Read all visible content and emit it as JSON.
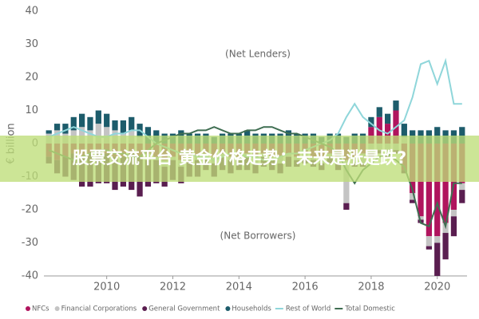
{
  "chart_data": {
    "type": "bar",
    "y_label": "€ billion",
    "annotations": [
      "(Net Lenders)",
      "(Net Borrowers)"
    ],
    "banner": "股票交流平台 黄金价格走势：未来是涨是跌?",
    "x": [
      2008.25,
      2008.5,
      2008.75,
      2009,
      2009.25,
      2009.5,
      2009.75,
      2010,
      2010.25,
      2010.5,
      2010.75,
      2011,
      2011.25,
      2011.5,
      2011.75,
      2012,
      2012.25,
      2012.5,
      2012.75,
      2013,
      2013.25,
      2013.5,
      2013.75,
      2014,
      2014.25,
      2014.5,
      2014.75,
      2015,
      2015.25,
      2015.5,
      2015.75,
      2016,
      2016.25,
      2016.5,
      2016.75,
      2017,
      2017.25,
      2017.5,
      2017.75,
      2018,
      2018.25,
      2018.5,
      2018.75,
      2019,
      2019.25,
      2019.5,
      2019.75,
      2020,
      2020.25,
      2020.5,
      2020.75
    ],
    "xlim": [
      2008.1,
      2020.9
    ],
    "xticks": [
      2010,
      2012,
      2014,
      2016,
      2018,
      2020
    ],
    "ylim": [
      -40,
      40
    ],
    "yticks": [
      -40,
      -30,
      -20,
      -10,
      0,
      10,
      20,
      30,
      40
    ],
    "series": [
      {
        "name": "NFCs",
        "type": "bar",
        "color": "#b0145e",
        "values": [
          -4,
          -5,
          -4,
          -3,
          -4,
          -3,
          -2,
          -3,
          -4,
          -4,
          -3,
          -4,
          -3,
          -4,
          -5,
          -4,
          -5,
          -4,
          -4,
          -3,
          -4,
          -3,
          -4,
          -4,
          -3,
          -4,
          -3,
          -4,
          -4,
          -3,
          -4,
          -3,
          -4,
          -4,
          -3,
          -4,
          -5,
          -4,
          -3,
          5,
          8,
          6,
          10,
          -8,
          -15,
          -22,
          -28,
          -28,
          -24,
          -20,
          -12
        ]
      },
      {
        "name": "Financial Corporations",
        "type": "bar",
        "color": "#c4c4c4",
        "values": [
          3,
          4,
          3,
          4,
          5,
          4,
          6,
          5,
          4,
          3,
          4,
          2,
          -2,
          -1,
          -2,
          -1,
          -2,
          -1,
          -1,
          -1,
          -2,
          -1,
          -1,
          -1,
          -1,
          -2,
          -1,
          -1,
          -2,
          -1,
          -1,
          -1,
          -1,
          -2,
          -1,
          -2,
          -13,
          -2,
          -3,
          -3,
          -2,
          -3,
          -2,
          2,
          -2,
          -1,
          -3,
          -2,
          -3,
          -2,
          -2
        ]
      },
      {
        "name": "General Government",
        "type": "bar",
        "color": "#5a1e50",
        "values": [
          -2,
          -4,
          -6,
          -8,
          -9,
          -10,
          -10,
          -9,
          -10,
          -9,
          -11,
          -12,
          -8,
          -7,
          -6,
          -6,
          -5,
          -5,
          -5,
          -4,
          -4,
          -4,
          -4,
          -3,
          -4,
          -3,
          -3,
          -3,
          -3,
          -3,
          -2,
          -2,
          -2,
          -2,
          -2,
          -2,
          -2,
          -1,
          -1,
          -1,
          -1,
          -1,
          -1,
          -1,
          -1,
          -1,
          -1,
          -10,
          -8,
          -6,
          -4
        ]
      },
      {
        "name": "Households",
        "type": "bar",
        "color": "#1d5c6b",
        "values": [
          1,
          2,
          3,
          4,
          4,
          4,
          4,
          4,
          3,
          4,
          4,
          4,
          5,
          4,
          3,
          3,
          4,
          3,
          3,
          3,
          2,
          3,
          3,
          3,
          4,
          3,
          3,
          3,
          3,
          4,
          3,
          3,
          3,
          2,
          3,
          3,
          2,
          3,
          3,
          3,
          3,
          3,
          3,
          4,
          4,
          4,
          4,
          5,
          4,
          4,
          5
        ]
      },
      {
        "name": "Rest of World",
        "type": "line",
        "color": "#8fd6da",
        "values": [
          2,
          3,
          4,
          5,
          4,
          3,
          2,
          2,
          3,
          3,
          4,
          4,
          2,
          0,
          -1,
          -2,
          -3,
          -3,
          -4,
          -4,
          -5,
          -4,
          -3,
          -3,
          -4,
          -4,
          -5,
          -5,
          -4,
          -3,
          -3,
          -2,
          -1,
          0,
          1,
          3,
          8,
          12,
          8,
          6,
          4,
          3,
          5,
          7,
          14,
          24,
          25,
          18,
          25,
          12,
          12
        ]
      },
      {
        "name": "Total Domestic",
        "type": "line",
        "color": "#3f6e52",
        "values": [
          -2,
          -3,
          -4,
          -5,
          -4,
          -3,
          -2,
          -2,
          -3,
          -3,
          -4,
          -4,
          -2,
          0,
          1,
          2,
          3,
          3,
          4,
          4,
          5,
          4,
          3,
          3,
          4,
          4,
          5,
          5,
          4,
          3,
          3,
          2,
          1,
          0,
          -1,
          -3,
          -8,
          -12,
          -8,
          -6,
          -4,
          -3,
          -5,
          -7,
          -14,
          -24,
          -25,
          -18,
          -25,
          -12,
          -12
        ]
      }
    ]
  }
}
